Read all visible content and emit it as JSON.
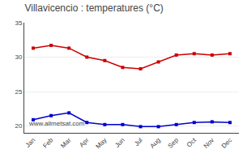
{
  "chart_data": {
    "type": "line",
    "title": "Villavicencio : temperatures (°C)",
    "categories": [
      "Jan",
      "Feb",
      "Mar",
      "Apr",
      "May",
      "Jun",
      "Jul",
      "Aug",
      "Sep",
      "Oct",
      "Nov",
      "Dec"
    ],
    "series": [
      {
        "color": "#cc0000",
        "values": [
          31.3,
          31.7,
          31.3,
          30.0,
          29.5,
          28.5,
          28.3,
          29.3,
          30.3,
          30.5,
          30.3,
          30.5
        ]
      },
      {
        "color": "#0000cc",
        "values": [
          20.9,
          21.5,
          21.9,
          20.5,
          20.2,
          20.2,
          19.9,
          19.9,
          20.2,
          20.5,
          20.6,
          20.5
        ]
      }
    ],
    "ylim": [
      19,
      35
    ],
    "yticks": [
      20,
      25,
      30,
      35
    ],
    "grid": true,
    "marker": "square",
    "annotations": [
      "www.allmetsat.com"
    ]
  }
}
